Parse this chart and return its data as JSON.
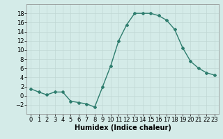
{
  "x": [
    0,
    1,
    2,
    3,
    4,
    5,
    6,
    7,
    8,
    9,
    10,
    11,
    12,
    13,
    14,
    15,
    16,
    17,
    18,
    19,
    20,
    21,
    22,
    23
  ],
  "y": [
    1.5,
    0.8,
    0.2,
    0.8,
    0.8,
    -1.2,
    -1.5,
    -1.8,
    -2.5,
    2.0,
    6.5,
    12.0,
    15.5,
    18.0,
    18.0,
    18.0,
    17.5,
    16.5,
    14.5,
    10.5,
    7.5,
    6.0,
    5.0,
    4.5
  ],
  "line_color": "#2e7d6e",
  "marker": "D",
  "marker_size": 2,
  "line_width": 1.0,
  "xlabel": "Humidex (Indice chaleur)",
  "xlim": [
    -0.5,
    23.5
  ],
  "ylim": [
    -4,
    20
  ],
  "yticks": [
    -2,
    0,
    2,
    4,
    6,
    8,
    10,
    12,
    14,
    16,
    18
  ],
  "xticks": [
    0,
    1,
    2,
    3,
    4,
    5,
    6,
    7,
    8,
    9,
    10,
    11,
    12,
    13,
    14,
    15,
    16,
    17,
    18,
    19,
    20,
    21,
    22,
    23
  ],
  "background_color": "#d4ebe8",
  "grid_color": "#c0d8d4",
  "label_fontsize": 7,
  "tick_fontsize": 6
}
